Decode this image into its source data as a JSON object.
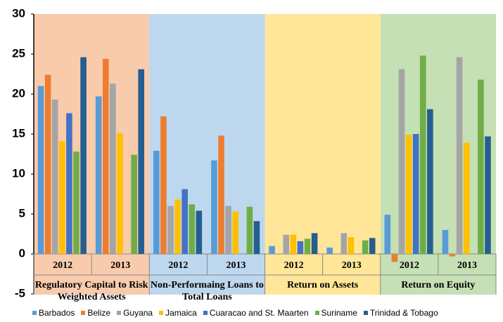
{
  "chart_data": {
    "type": "bar",
    "categories": [
      "2012",
      "2013",
      "2012",
      "2013",
      "2012",
      "2013",
      "2012",
      "2013"
    ],
    "groups": [
      "Regulatory Capital to Risk Weighted Assets",
      "Non-Performaing Loans to Total Loans",
      "Return on Assets",
      "Return on Equity"
    ],
    "group_colors": [
      "#f8cbad",
      "#bdd7ee",
      "#ffe699",
      "#c5e0b4"
    ],
    "series": [
      {
        "name": "Barbados",
        "color": "#5b9bd5",
        "values": [
          21.0,
          19.7,
          12.9,
          11.7,
          1.0,
          0.8,
          4.9,
          3.0
        ]
      },
      {
        "name": "Belize",
        "color": "#ed7d31",
        "values": [
          22.4,
          24.4,
          17.2,
          14.8,
          null,
          null,
          -1.0,
          -0.3
        ]
      },
      {
        "name": "Guyana",
        "color": "#a5a5a5",
        "values": [
          19.3,
          21.3,
          6.0,
          6.0,
          2.4,
          2.6,
          23.1,
          24.6
        ]
      },
      {
        "name": "Jamaica",
        "color": "#ffc000",
        "values": [
          14.1,
          15.1,
          6.8,
          5.3,
          2.4,
          2.1,
          14.9,
          13.9
        ]
      },
      {
        "name": "Cuaracao and St. Maarten",
        "color": "#4472c4",
        "values": [
          17.6,
          null,
          8.1,
          null,
          1.6,
          null,
          15.0,
          null
        ]
      },
      {
        "name": "Suriname",
        "color": "#70ad47",
        "values": [
          12.8,
          12.4,
          6.2,
          5.9,
          1.9,
          1.7,
          24.8,
          21.8
        ]
      },
      {
        "name": "Trinidad & Tobago",
        "color": "#255e91",
        "values": [
          24.6,
          23.1,
          5.4,
          4.1,
          2.6,
          2.0,
          18.1,
          14.7
        ]
      }
    ],
    "ylim": [
      -5,
      30
    ],
    "yticks": [
      -5,
      0,
      5,
      10,
      15,
      20,
      25,
      30
    ]
  }
}
